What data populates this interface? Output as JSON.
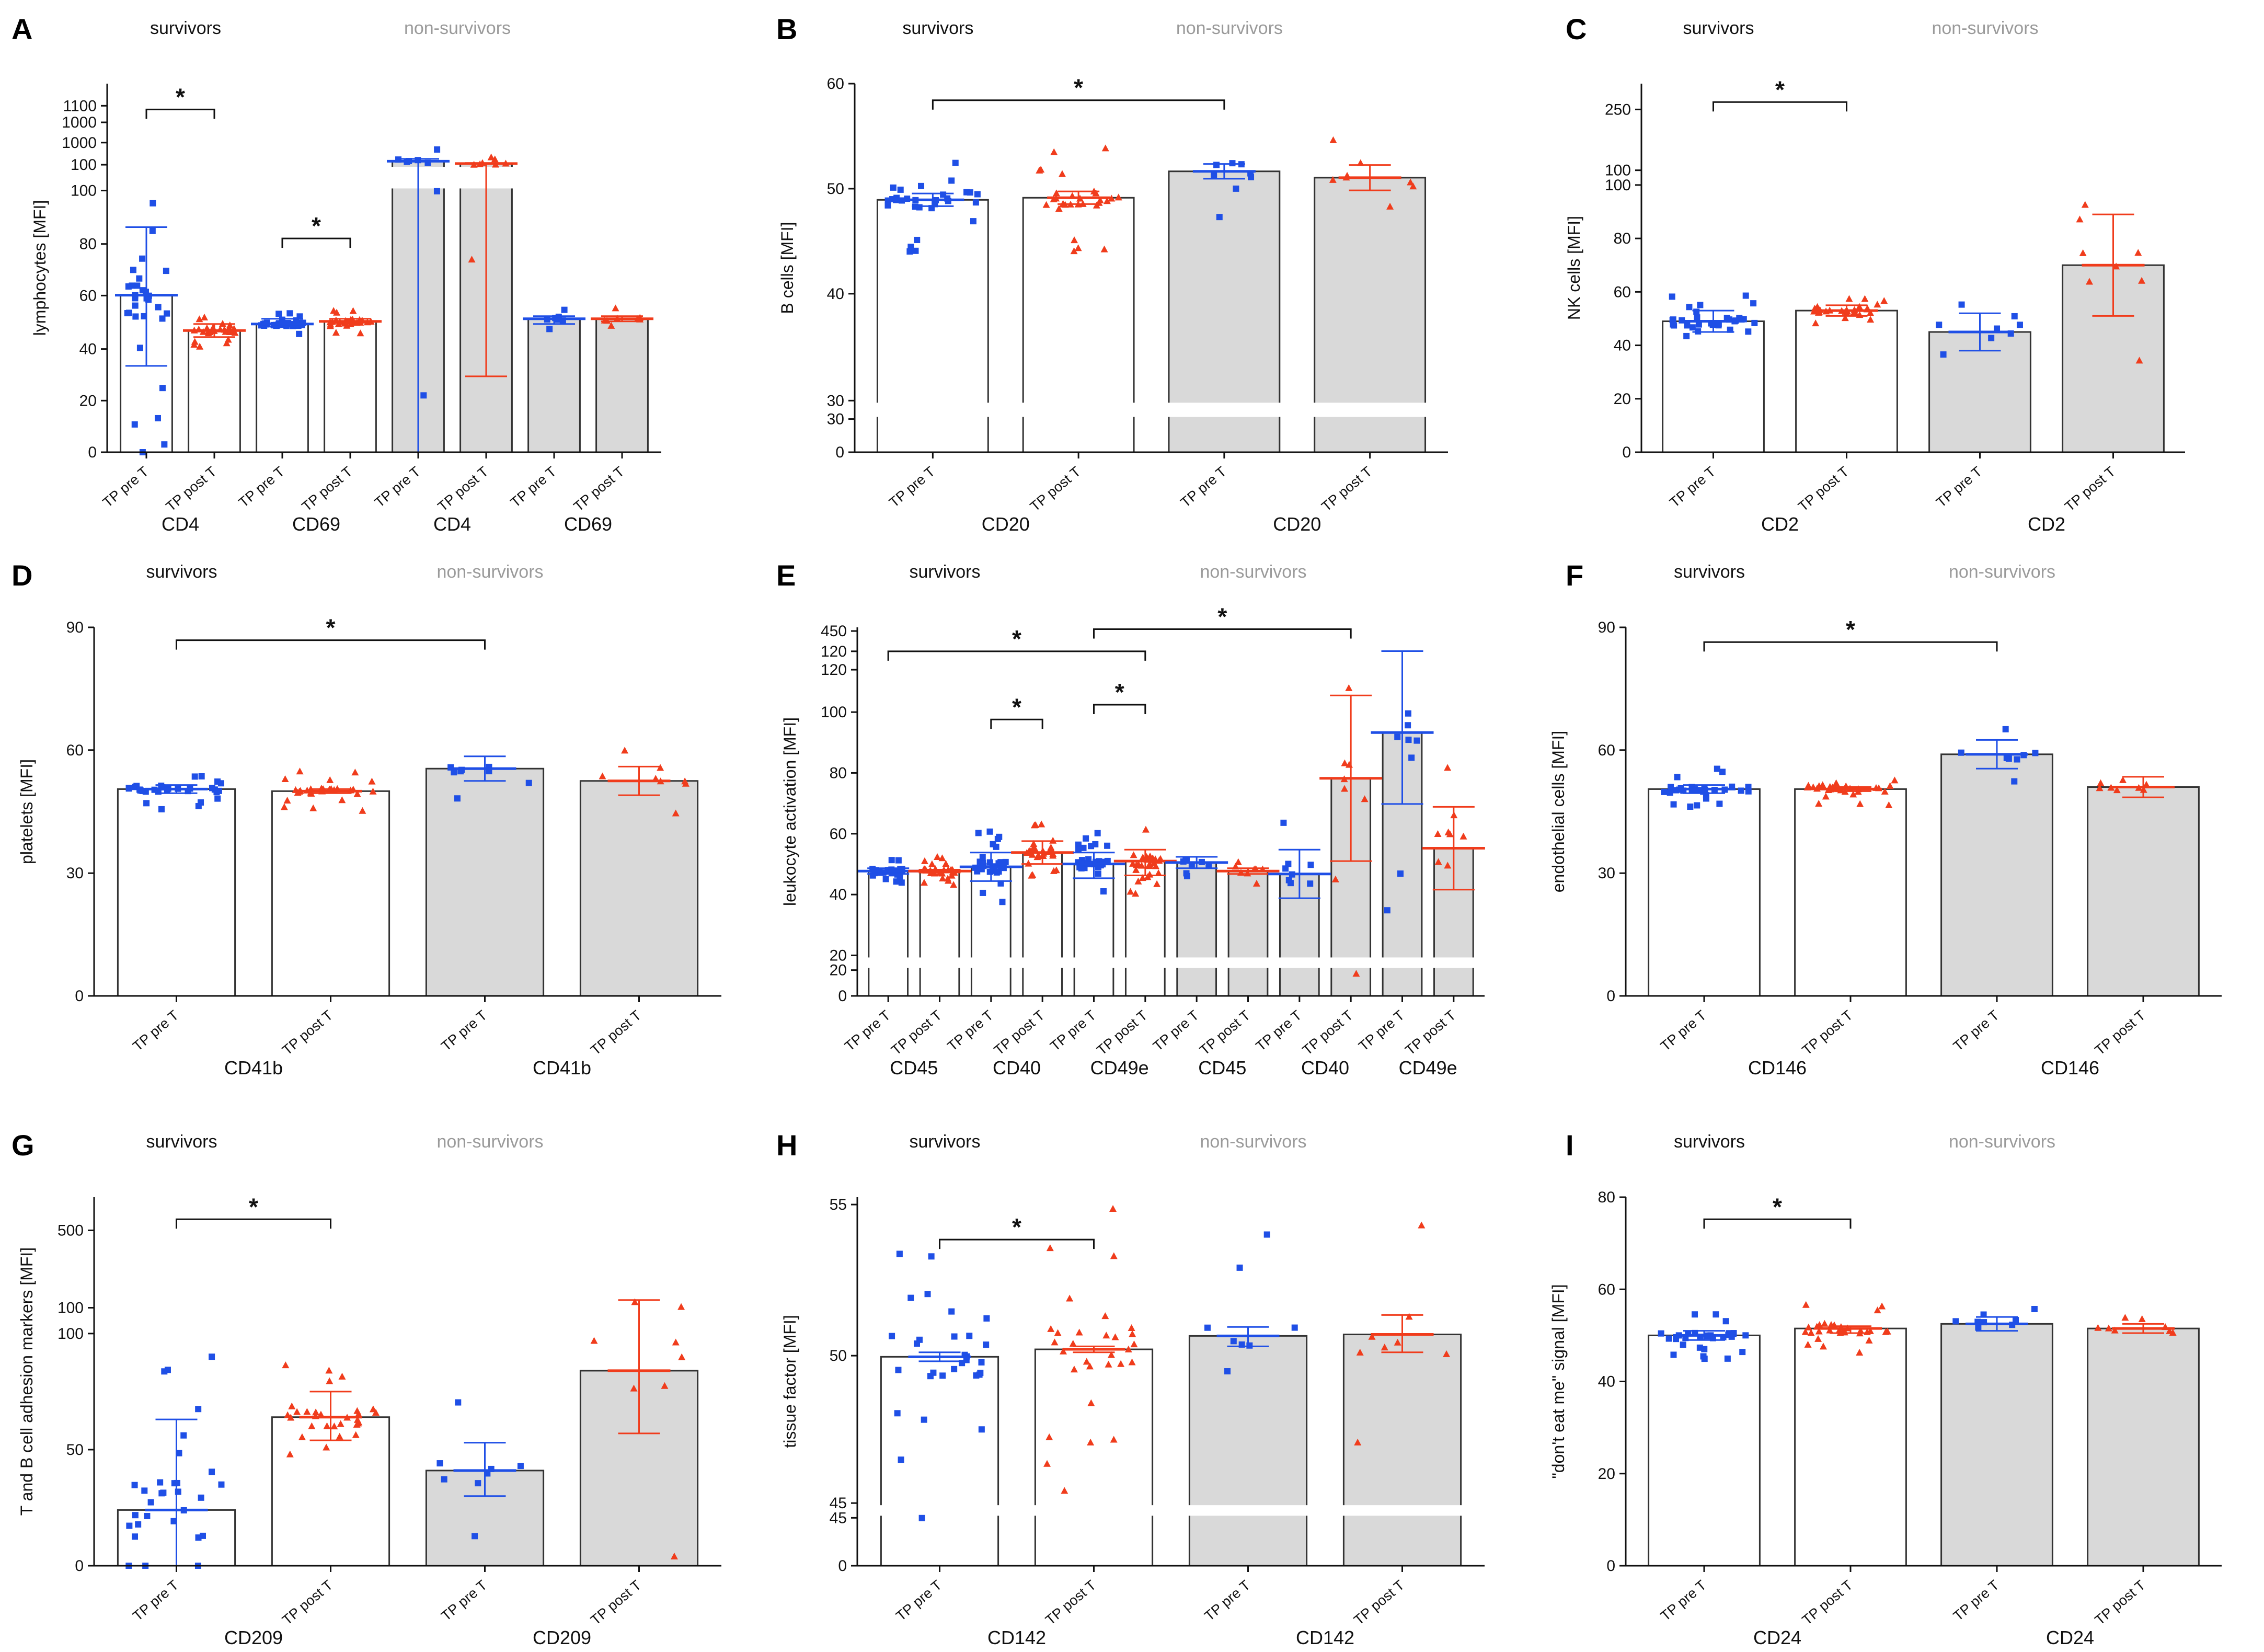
{
  "colors": {
    "pre_T": "#1f4fe6",
    "post_T": "#f03c1c",
    "non_survivor_bar": "#d9d9d9",
    "survivor_bar": "#ffffff",
    "header_non_survivors": "#9a9a9a"
  },
  "headers": {
    "survivors": "survivors",
    "non_survivors": "non-survivors"
  },
  "legend_labels": {
    "pre": "TP pre T",
    "post": "TP post T"
  },
  "chart_data": [
    {
      "panel": "A",
      "type": "bar",
      "ylabel": "lymphocytes [MFI]",
      "broken_axis": true,
      "y_ticks": [
        "0",
        "20",
        "40",
        "60",
        "80",
        "100",
        "100",
        "1000",
        "1000",
        "1100"
      ],
      "categories": [
        "TP pre T",
        "TP post T",
        "TP pre T",
        "TP post T",
        "TP pre T",
        "TP post T",
        "TP pre T",
        "TP post T"
      ],
      "groups": [
        {
          "label": "CD4",
          "cohort": "survivors"
        },
        {
          "label": "CD69",
          "cohort": "survivors"
        },
        {
          "label": "CD4",
          "cohort": "non-survivors"
        },
        {
          "label": "CD69",
          "cohort": "non-survivors"
        }
      ],
      "bar_values": [
        60,
        46.5,
        49,
        50,
        160,
        120,
        51,
        51
      ],
      "error": [
        [
          33,
          86
        ],
        [
          44,
          49
        ],
        [
          48,
          51
        ],
        [
          49.5,
          51
        ],
        [
          0,
          200
        ],
        [
          29,
          130
        ],
        [
          49,
          52
        ],
        [
          50,
          52
        ]
      ],
      "significance": [
        "*",
        "*"
      ]
    },
    {
      "panel": "B",
      "type": "bar",
      "ylabel": "B cells [MFI]",
      "broken_axis": true,
      "y_ticks": [
        "0",
        "30",
        "30",
        "40",
        "50",
        "60"
      ],
      "categories": [
        "TP pre T",
        "TP post T",
        "TP pre T",
        "TP post T"
      ],
      "groups": [
        {
          "label": "CD20",
          "cohort": "survivors"
        },
        {
          "label": "CD20",
          "cohort": "non-survivors"
        }
      ],
      "bar_values": [
        49,
        49.2,
        51.7,
        51.1
      ],
      "error": [
        [
          48.4,
          49.6
        ],
        [
          48.6,
          49.8
        ],
        [
          51.0,
          52.4
        ],
        [
          49.9,
          52.3
        ]
      ],
      "significance": [
        "*"
      ]
    },
    {
      "panel": "C",
      "type": "bar",
      "ylabel": "NK cells [MFI]",
      "broken_axis": true,
      "y_ticks": [
        "0",
        "20",
        "40",
        "60",
        "80",
        "100",
        "100",
        "250"
      ],
      "categories": [
        "TP pre T",
        "TP post T",
        "TP pre T",
        "TP post T"
      ],
      "groups": [
        {
          "label": "CD2",
          "cohort": "survivors"
        },
        {
          "label": "CD2",
          "cohort": "non-survivors"
        }
      ],
      "bar_values": [
        49,
        53,
        45,
        70
      ],
      "error": [
        [
          45,
          53
        ],
        [
          51,
          55
        ],
        [
          38,
          52
        ],
        [
          51,
          89
        ]
      ],
      "significance": [
        "*"
      ]
    },
    {
      "panel": "D",
      "type": "bar",
      "ylabel": "platelets [MFI]",
      "broken_axis": false,
      "y_ticks": [
        "0",
        "30",
        "60",
        "90"
      ],
      "categories": [
        "TP pre T",
        "TP post T",
        "TP pre T",
        "TP post T"
      ],
      "groups": [
        {
          "label": "CD41b",
          "cohort": "survivors"
        },
        {
          "label": "CD41b",
          "cohort": "non-survivors"
        }
      ],
      "bar_values": [
        50.5,
        50,
        55.5,
        52.5
      ],
      "error": [
        [
          49.5,
          51.5
        ],
        [
          49.5,
          50.5
        ],
        [
          52.5,
          58.5
        ],
        [
          49,
          56
        ]
      ],
      "significance": [
        "*"
      ]
    },
    {
      "panel": "E",
      "type": "bar",
      "ylabel": "leukocyte activation [MFI]",
      "broken_axis": true,
      "y_ticks": [
        "0",
        "20",
        "20",
        "40",
        "60",
        "80",
        "100",
        "120",
        "120",
        "450"
      ],
      "categories": [
        "TP pre T",
        "TP post T",
        "TP pre T",
        "TP post T",
        "TP pre T",
        "TP post T",
        "TP pre T",
        "TP post T",
        "TP pre T",
        "TP post T",
        "TP pre T",
        "TP post T"
      ],
      "groups": [
        {
          "label": "CD45",
          "cohort": "survivors"
        },
        {
          "label": "CD40",
          "cohort": "survivors"
        },
        {
          "label": "CD49e",
          "cohort": "survivors"
        },
        {
          "label": "CD45",
          "cohort": "non-survivors"
        },
        {
          "label": "CD40",
          "cohort": "non-survivors"
        },
        {
          "label": "CD49e",
          "cohort": "non-survivors"
        }
      ],
      "bar_values": [
        49.5,
        49.5,
        51,
        56,
        52,
        53,
        52.5,
        49.5,
        48.5,
        82,
        98,
        57.5
      ],
      "error": [
        [
          48.5,
          50.5
        ],
        [
          49,
          50
        ],
        [
          46,
          56
        ],
        [
          52,
          60
        ],
        [
          47,
          56
        ],
        [
          48,
          57
        ],
        [
          50.5,
          54.5
        ],
        [
          48.5,
          50.5
        ],
        [
          40,
          57
        ],
        [
          53,
          111
        ],
        [
          73,
          123
        ],
        [
          43,
          72
        ]
      ],
      "significance": [
        "*",
        "*",
        "*",
        "*"
      ]
    },
    {
      "panel": "F",
      "type": "bar",
      "ylabel": "endothelial cells [MFI]",
      "broken_axis": false,
      "y_ticks": [
        "0",
        "30",
        "60",
        "90"
      ],
      "categories": [
        "TP pre T",
        "TP post T",
        "TP pre T",
        "TP post T"
      ],
      "groups": [
        {
          "label": "CD146",
          "cohort": "survivors"
        },
        {
          "label": "CD146",
          "cohort": "non-survivors"
        }
      ],
      "bar_values": [
        50.5,
        50.5,
        59,
        51
      ],
      "error": [
        [
          49.5,
          51.5
        ],
        [
          50,
          51
        ],
        [
          55.5,
          62.5
        ],
        [
          48.5,
          53.5
        ]
      ],
      "significance": [
        "*"
      ]
    },
    {
      "panel": "G",
      "type": "bar",
      "ylabel": "T and B cell adhesion markers [MFI]",
      "broken_axis": true,
      "y_ticks": [
        "0",
        "50",
        "100",
        "100",
        "500"
      ],
      "categories": [
        "TP pre T",
        "TP post T",
        "TP pre T",
        "TP post T"
      ],
      "groups": [
        {
          "label": "CD209",
          "cohort": "survivors"
        },
        {
          "label": "CD209",
          "cohort": "non-survivors"
        }
      ],
      "bar_values": [
        24,
        64,
        41,
        84
      ],
      "error": [
        [
          0,
          63
        ],
        [
          54,
          75
        ],
        [
          30,
          53
        ],
        [
          57,
          140
        ]
      ],
      "significance": [
        "*"
      ]
    },
    {
      "panel": "H",
      "type": "bar",
      "ylabel": "tissue factor [MFI]",
      "broken_axis": true,
      "y_ticks": [
        "0",
        "45",
        "45",
        "50",
        "55"
      ],
      "categories": [
        "TP pre T",
        "TP post T",
        "TP pre T",
        "TP post T"
      ],
      "groups": [
        {
          "label": "CD142",
          "cohort": "survivors"
        },
        {
          "label": "CD142",
          "cohort": "non-survivors"
        }
      ],
      "bar_values": [
        49.9,
        50.15,
        50.6,
        50.65
      ],
      "error": [
        [
          49.75,
          50.05
        ],
        [
          50.05,
          50.25
        ],
        [
          50.25,
          50.9
        ],
        [
          50.05,
          51.3
        ]
      ],
      "significance": [
        "*"
      ]
    },
    {
      "panel": "I",
      "type": "bar",
      "ylabel": "\"don't eat me\" signal [MFI]",
      "broken_axis": false,
      "y_ticks": [
        "0",
        "20",
        "40",
        "60",
        "80"
      ],
      "categories": [
        "TP pre T",
        "TP post T",
        "TP pre T",
        "TP post T"
      ],
      "groups": [
        {
          "label": "CD24",
          "cohort": "survivors"
        },
        {
          "label": "CD24",
          "cohort": "non-survivors"
        }
      ],
      "bar_values": [
        50,
        51.5,
        52.5,
        51.5
      ],
      "error": [
        [
          49,
          51
        ],
        [
          50.5,
          52
        ],
        [
          51,
          54
        ],
        [
          50.5,
          52.5
        ]
      ],
      "significance": [
        "*"
      ]
    }
  ]
}
